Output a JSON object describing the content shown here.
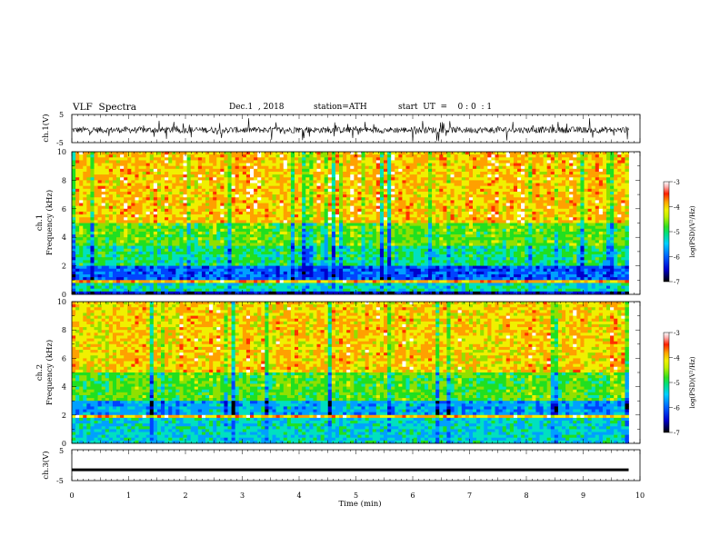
{
  "header": {
    "title": "VLF  Spectra",
    "date": "Dec.1  , 2018",
    "station": "station=ATH",
    "start_ut": "start  UT  =    0 : 0  : 1"
  },
  "colors": {
    "spectrogram_scale": [
      "#000000",
      "#0000cc",
      "#0044ff",
      "#00a0ff",
      "#00e0c0",
      "#20e020",
      "#90e000",
      "#f0f000",
      "#ffa000",
      "#ff3000",
      "#ffffff"
    ],
    "trace": "#000000",
    "axis": "#000000"
  },
  "chart_data": [
    {
      "type": "line",
      "panel": "ch1-voltage",
      "ylabel": "ch.1(V)",
      "ylim": [
        -5,
        5
      ],
      "yticks": [
        "5",
        "-5"
      ],
      "xlim": [
        0,
        10
      ],
      "description_values": "continuous noisy trace centered near -0.5 V, amplitude about ±2 V"
    },
    {
      "type": "heatmap",
      "panel": "ch1-spectrogram",
      "ylabel": "ch.1\nFrequency  (kHz)",
      "ylim": [
        0,
        10
      ],
      "yticks": [
        "0",
        "2",
        "4",
        "6",
        "8",
        "10"
      ],
      "xlim": [
        0,
        9.8
      ],
      "colorbar": {
        "label": "log(PSD)(V²/Hz)",
        "range": [
          -7,
          -3
        ],
        "ticks": [
          "-3",
          "-4",
          "-5",
          "-6",
          "-7"
        ]
      },
      "bands_kHz": [
        {
          "from": 0,
          "to": 0.3,
          "level": -6.5
        },
        {
          "from": 0.3,
          "to": 0.8,
          "level": -5.2
        },
        {
          "from": 0.8,
          "to": 1.0,
          "level": -3.5
        },
        {
          "from": 1.0,
          "to": 2.0,
          "level": -6.0
        },
        {
          "from": 2.0,
          "to": 3.5,
          "level": -5.0
        },
        {
          "from": 3.5,
          "to": 5.0,
          "level": -4.5
        },
        {
          "from": 5.0,
          "to": 10,
          "level": -3.6
        }
      ]
    },
    {
      "type": "heatmap",
      "panel": "ch2-spectrogram",
      "ylabel": "ch.2\nFrequency  (kHz)",
      "ylim": [
        0,
        10
      ],
      "yticks": [
        "0",
        "2",
        "4",
        "6",
        "8",
        "10"
      ],
      "xlim": [
        0,
        9.8
      ],
      "colorbar": {
        "label": "log(PSD)(V²/Hz)",
        "range": [
          -7,
          -3
        ],
        "ticks": [
          "-3",
          "-4",
          "-5",
          "-6",
          "-7"
        ]
      },
      "bands_kHz": [
        {
          "from": 0,
          "to": 1.9,
          "level": -5.3
        },
        {
          "from": 1.9,
          "to": 2.1,
          "level": -3.5
        },
        {
          "from": 2.1,
          "to": 3.0,
          "level": -5.6
        },
        {
          "from": 3.0,
          "to": 5.0,
          "level": -4.6
        },
        {
          "from": 5.0,
          "to": 10,
          "level": -3.7
        }
      ]
    },
    {
      "type": "line",
      "panel": "ch3-voltage",
      "ylabel": "ch.3(V)",
      "ylim": [
        -5,
        5
      ],
      "yticks": [
        "5",
        "-5"
      ],
      "xlim": [
        0,
        10
      ],
      "xlabel": "Time  (min)",
      "xticks": [
        "0",
        "1",
        "2",
        "3",
        "4",
        "5",
        "6",
        "7",
        "8",
        "9",
        "10"
      ],
      "description_values": "flat trace near -1.5 V"
    }
  ]
}
